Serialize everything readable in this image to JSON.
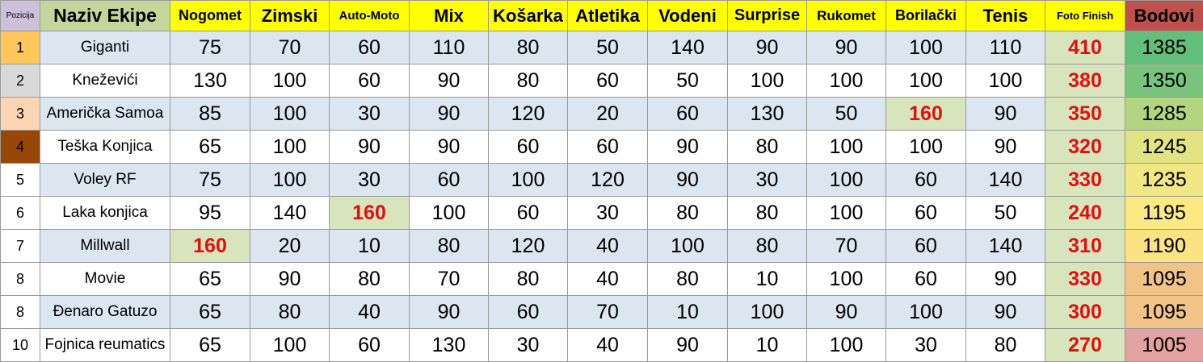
{
  "table": {
    "headers": {
      "pos": "Pozicija",
      "team": "Naziv Ekipe",
      "cols": [
        "Nogomet",
        "Zimski",
        "Auto-Moto",
        "Mix",
        "Košarka",
        "Atletika",
        "Vodeni",
        "Surprise",
        "Rukomet",
        "Borilački",
        "Tenis",
        "Foto Finish"
      ],
      "total": "Bodovi"
    },
    "rows": [
      {
        "pos": "1",
        "team": "Giganti",
        "scores": [
          "75",
          "70",
          "60",
          "110",
          "80",
          "50",
          "140",
          "90",
          "90",
          "100",
          "110",
          "410"
        ],
        "total": "1385"
      },
      {
        "pos": "2",
        "team": "Kneževići",
        "scores": [
          "130",
          "100",
          "60",
          "90",
          "80",
          "60",
          "50",
          "100",
          "100",
          "100",
          "100",
          "380"
        ],
        "total": "1350"
      },
      {
        "pos": "3",
        "team": "Američka Samoa",
        "scores": [
          "85",
          "100",
          "30",
          "90",
          "120",
          "20",
          "60",
          "130",
          "50",
          "160",
          "90",
          "350"
        ],
        "total": "1285"
      },
      {
        "pos": "4",
        "team": "Teška Konjica",
        "scores": [
          "65",
          "100",
          "90",
          "90",
          "60",
          "60",
          "90",
          "80",
          "100",
          "100",
          "90",
          "320"
        ],
        "total": "1245"
      },
      {
        "pos": "5",
        "team": "Voley RF",
        "scores": [
          "75",
          "100",
          "30",
          "60",
          "100",
          "120",
          "90",
          "30",
          "100",
          "60",
          "140",
          "330"
        ],
        "total": "1235"
      },
      {
        "pos": "6",
        "team": "Laka konjica",
        "scores": [
          "95",
          "140",
          "160",
          "100",
          "60",
          "30",
          "80",
          "80",
          "100",
          "60",
          "50",
          "240"
        ],
        "total": "1195"
      },
      {
        "pos": "7",
        "team": "Millwall",
        "scores": [
          "160",
          "20",
          "10",
          "80",
          "120",
          "40",
          "100",
          "80",
          "70",
          "60",
          "140",
          "310"
        ],
        "total": "1190"
      },
      {
        "pos": "8",
        "team": "Movie",
        "scores": [
          "65",
          "90",
          "80",
          "70",
          "80",
          "40",
          "80",
          "10",
          "100",
          "60",
          "90",
          "330"
        ],
        "total": "1095"
      },
      {
        "pos": "8",
        "team": "Đenaro Gatuzo",
        "scores": [
          "65",
          "80",
          "40",
          "90",
          "60",
          "70",
          "10",
          "100",
          "90",
          "100",
          "90",
          "300"
        ],
        "total": "1095"
      },
      {
        "pos": "10",
        "team": "Fojnica reumatics",
        "scores": [
          "65",
          "100",
          "60",
          "130",
          "30",
          "40",
          "90",
          "10",
          "100",
          "30",
          "80",
          "270"
        ],
        "total": "1005"
      }
    ]
  },
  "colors": {
    "header_bg": "#ffff00",
    "team_header_bg": "#c4d79b",
    "pos_header_bg": "#ccc0da",
    "total_header_bg": "#c0504d",
    "highlight_text": "#e01010",
    "highlight_bg": "#d8e4bc",
    "row_shade": "#dce6f1",
    "total_scale": [
      "#63be7b",
      "#78c47c",
      "#b2d580",
      "#e2e383",
      "#f1e784",
      "#fbe983",
      "#fbe382",
      "#f1c386",
      "#f1c386",
      "#e3a1a0"
    ],
    "position_colors": [
      "#ffc65a",
      "#d9d9d9",
      "#fcd5b4",
      "#974706"
    ]
  }
}
